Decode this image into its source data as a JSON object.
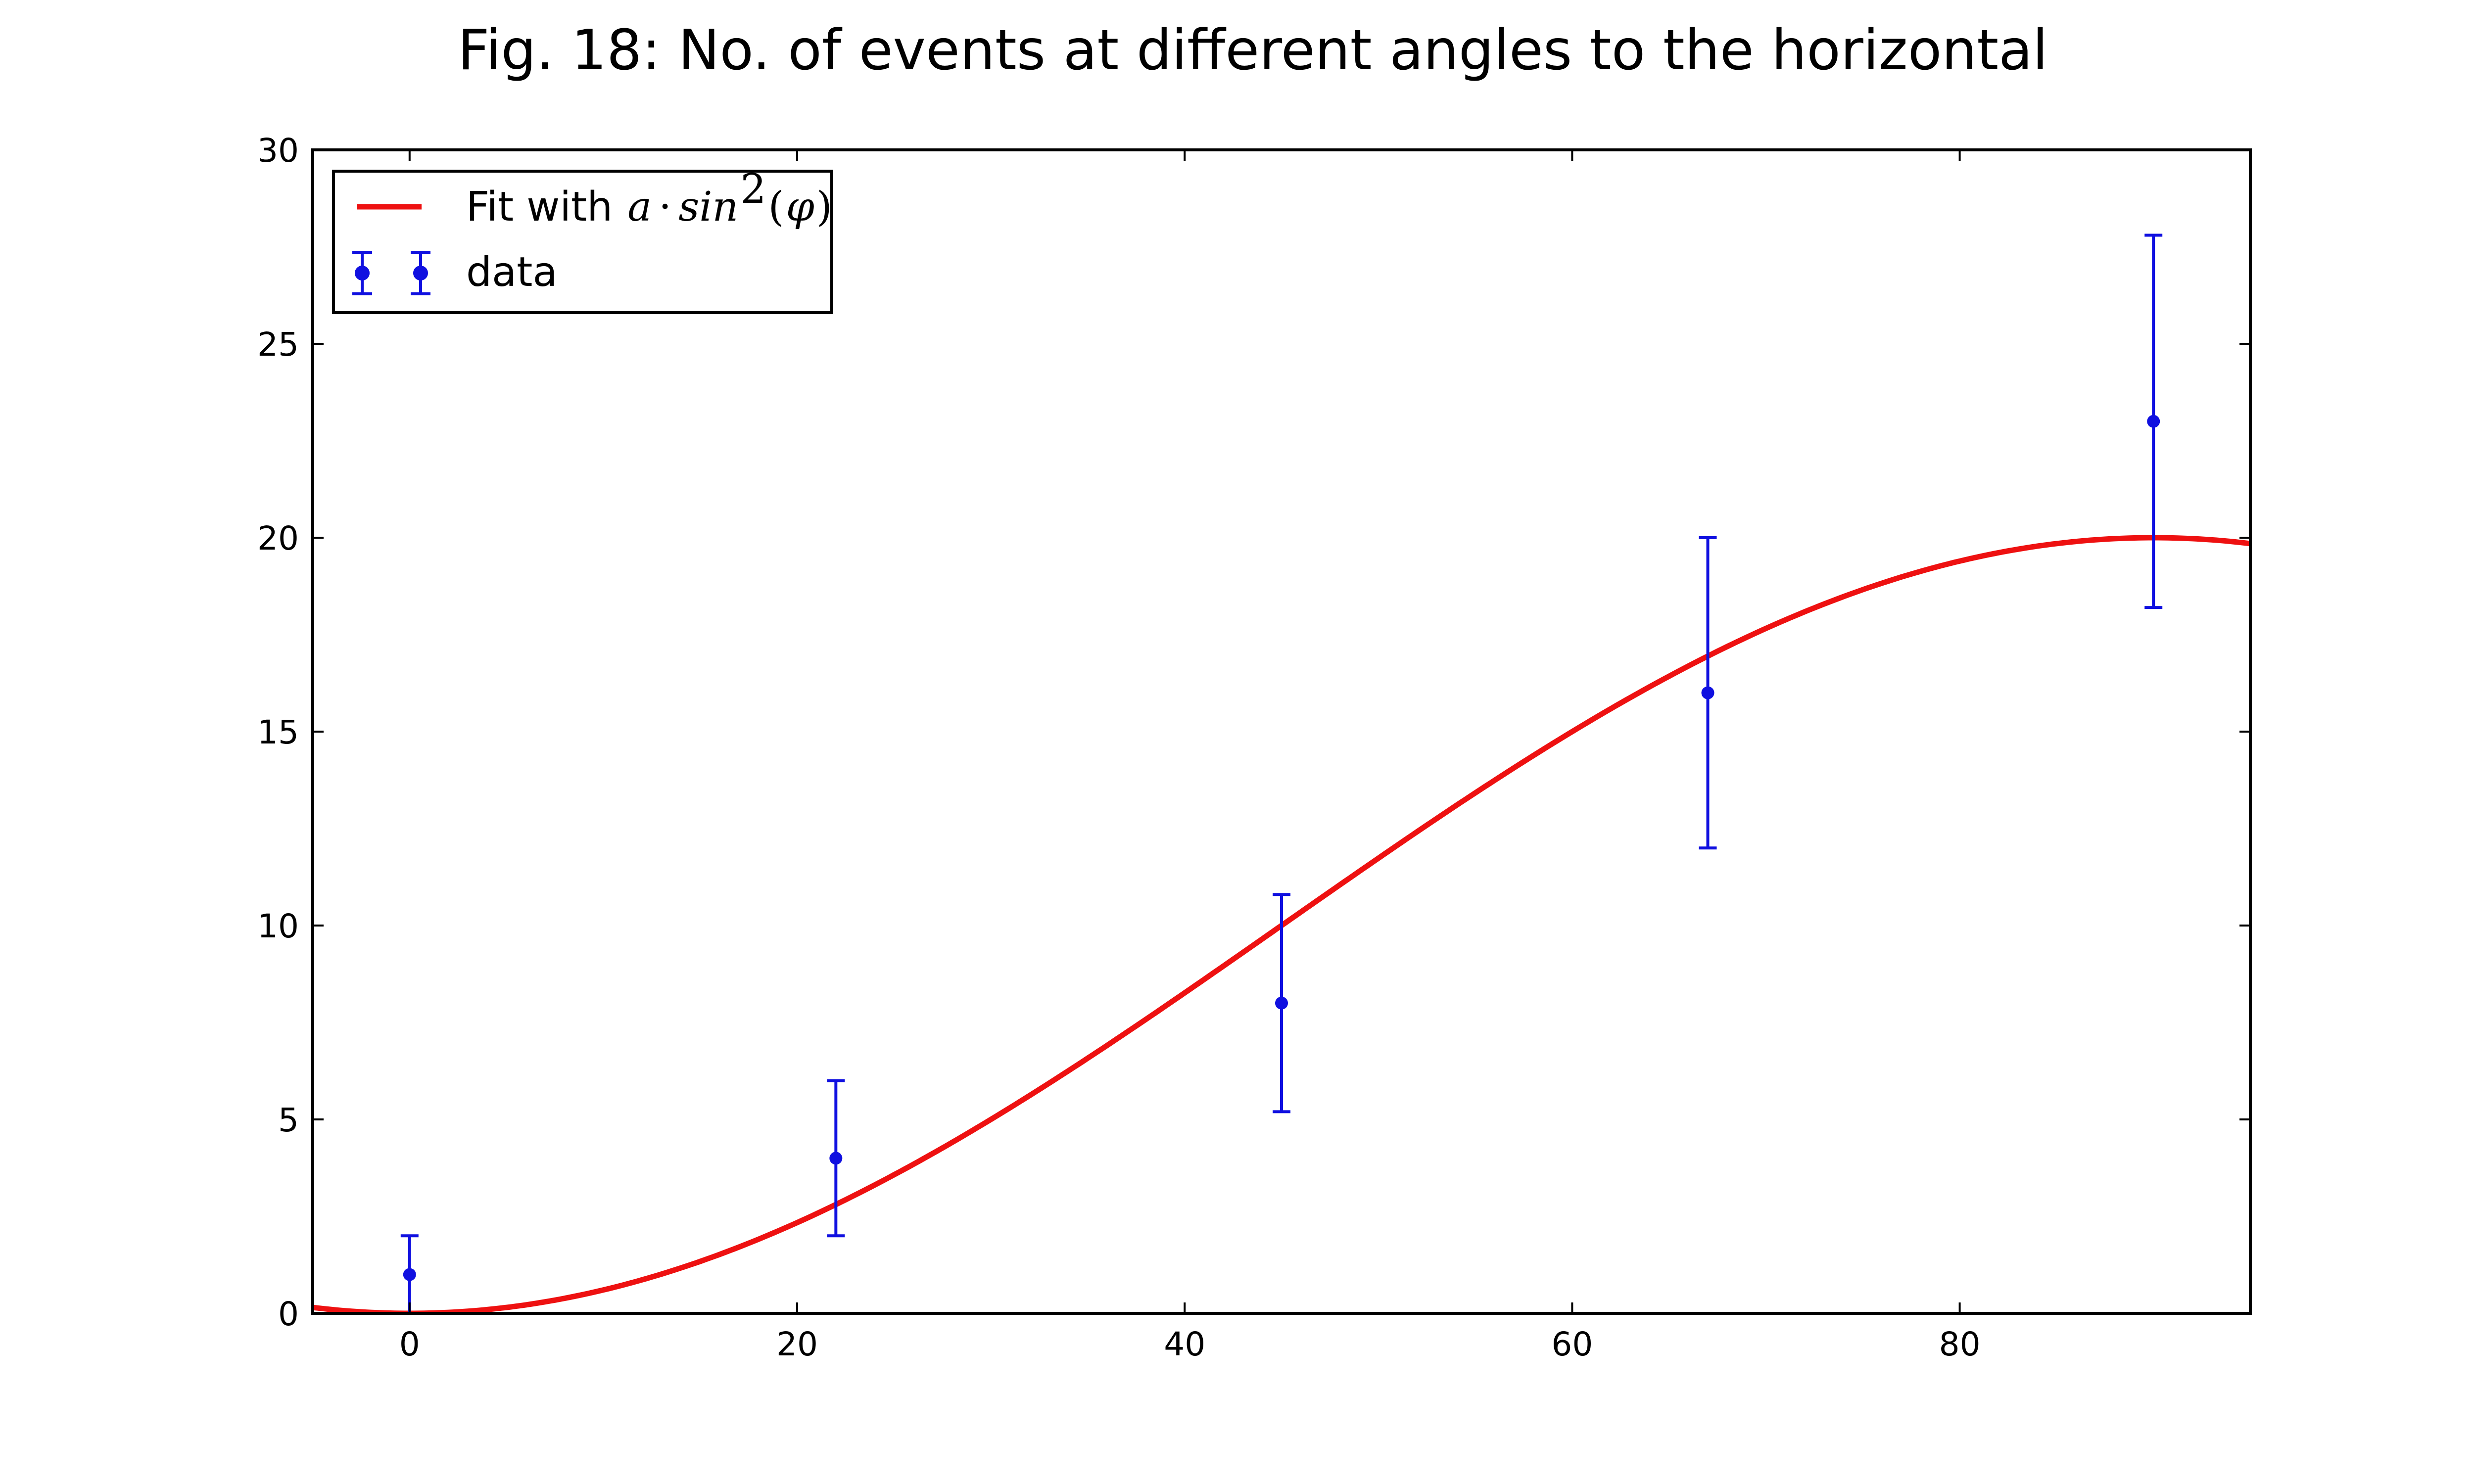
{
  "chart_data": {
    "type": "scatter",
    "title": "Fig. 18: No. of events at different angles to the horizontal",
    "xlabel": "",
    "ylabel": "",
    "xlim": [
      -5,
      95
    ],
    "ylim": [
      0,
      30
    ],
    "x_ticks": [
      0,
      20,
      40,
      60,
      80
    ],
    "y_ticks": [
      0,
      5,
      10,
      15,
      20,
      25,
      30
    ],
    "x_tick_labels": [
      "0",
      "20",
      "40",
      "60",
      "80"
    ],
    "y_tick_labels": [
      "0",
      "5",
      "10",
      "15",
      "20",
      "25",
      "30"
    ],
    "grid": false,
    "legend_position": "top-left",
    "series": [
      {
        "name": "Fit with a·sin²(φ)",
        "kind": "line",
        "color": "#ee1111",
        "model": "a*sin^2(phi)",
        "a": 20
      },
      {
        "name": "data",
        "kind": "errorbar",
        "color": "#1010e0",
        "x": [
          0,
          22,
          45,
          67,
          90
        ],
        "y": [
          1,
          4,
          8,
          16,
          23
        ],
        "yerr": [
          1,
          2,
          2.8,
          4,
          4.8
        ]
      }
    ],
    "legend": {
      "fit_prefix": "Fit with ",
      "fit_math_a": "a",
      "fit_math_dot": "·",
      "fit_math_sin": "sin",
      "fit_math_exp": "2",
      "fit_math_open": "(",
      "fit_math_phi": "φ",
      "fit_math_close": ")",
      "data_label": "data"
    }
  }
}
